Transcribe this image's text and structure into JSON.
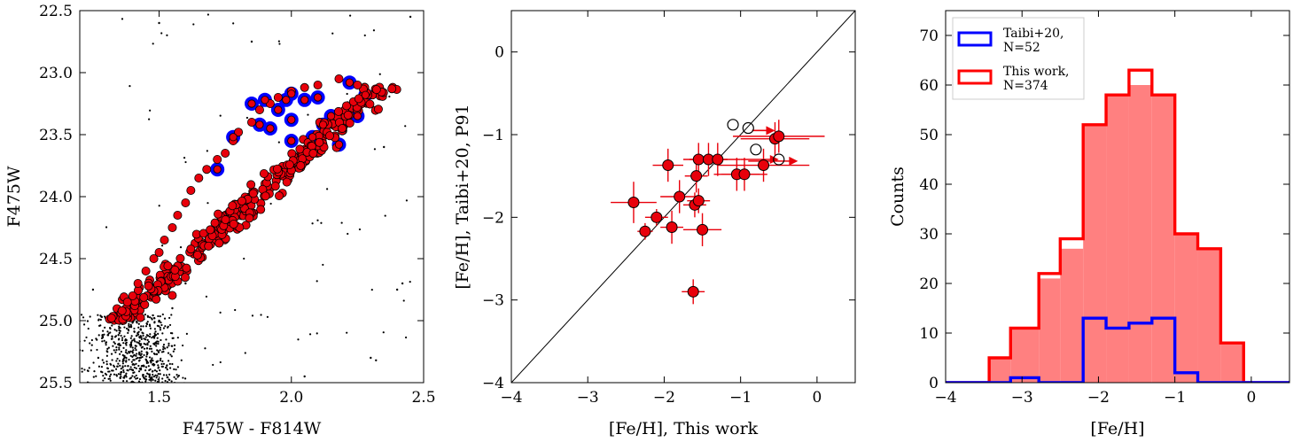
{
  "chart_data": [
    {
      "type": "scatter",
      "name": "cmd",
      "xlabel": "F475W - F814W",
      "ylabel": "F475W",
      "xlim": [
        1.2,
        2.5
      ],
      "ylim": [
        25.5,
        22.5
      ],
      "y_inverted": true,
      "xticks": [
        1.5,
        2.0,
        2.5
      ],
      "xtick_labels": [
        "1.5",
        "2.0",
        "2.5"
      ],
      "yticks": [
        22.5,
        23.0,
        23.5,
        24.0,
        24.5,
        25.0,
        25.5
      ],
      "ytick_labels": [
        "22.5",
        "23.0",
        "23.5",
        "24.0",
        "24.5",
        "25.0",
        "25.5"
      ],
      "colors": {
        "field": "#000000",
        "members": "#e8000b",
        "taibi": "#0000ff"
      },
      "series": [
        {
          "role": "field",
          "marker": "small black dots",
          "points_sample": [
            [
              1.27,
              25.3
            ],
            [
              1.35,
              25.1
            ],
            [
              1.4,
              25.4
            ],
            [
              1.43,
              25.2
            ],
            [
              1.45,
              25.45
            ],
            [
              1.5,
              25.0
            ],
            [
              1.55,
              24.9
            ],
            [
              1.6,
              24.7
            ],
            [
              1.25,
              24.75
            ],
            [
              2.05,
              25.45
            ],
            [
              2.3,
              25.3
            ],
            [
              2.4,
              24.75
            ],
            [
              2.45,
              22.55
            ],
            [
              1.5,
              22.6
            ],
            [
              1.85,
              22.75
            ],
            [
              2.35,
              23.6
            ],
            [
              2.42,
              24.7
            ],
            [
              2.32,
              25.32
            ]
          ]
        },
        {
          "role": "members",
          "marker": "red filled circles",
          "points_sample": [
            [
              1.32,
              24.98
            ],
            [
              1.38,
              24.85
            ],
            [
              1.42,
              24.7
            ],
            [
              1.45,
              24.6
            ],
            [
              1.48,
              24.5
            ],
            [
              1.5,
              24.45
            ],
            [
              1.52,
              24.35
            ],
            [
              1.55,
              24.25
            ],
            [
              1.57,
              24.15
            ],
            [
              1.6,
              24.05
            ],
            [
              1.62,
              23.95
            ],
            [
              1.65,
              23.85
            ],
            [
              1.68,
              23.78
            ],
            [
              1.72,
              23.7
            ],
            [
              1.75,
              23.65
            ],
            [
              1.78,
              23.55
            ],
            [
              1.8,
              23.48
            ],
            [
              1.85,
              23.4
            ],
            [
              1.88,
              23.3
            ],
            [
              1.92,
              23.25
            ],
            [
              1.95,
              23.2
            ],
            [
              2.0,
              23.15
            ],
            [
              2.05,
              23.12
            ],
            [
              2.1,
              23.1
            ],
            [
              2.18,
              23.05
            ],
            [
              2.25,
              23.1
            ],
            [
              2.38,
              23.13
            ],
            [
              1.4,
              24.8
            ],
            [
              1.36,
              24.92
            ],
            [
              1.46,
              24.72
            ]
          ]
        },
        {
          "role": "taibi",
          "marker": "blue ring",
          "points": [
            [
              1.78,
              23.52
            ],
            [
              1.85,
              23.25
            ],
            [
              1.9,
              23.22
            ],
            [
              1.92,
              23.45
            ],
            [
              1.95,
              23.3
            ],
            [
              1.98,
              23.22
            ],
            [
              2.0,
              23.17
            ],
            [
              2.0,
              23.38
            ],
            [
              2.0,
              23.55
            ],
            [
              2.05,
              23.22
            ],
            [
              2.1,
              23.2
            ],
            [
              2.12,
              23.42
            ],
            [
              2.15,
              23.35
            ],
            [
              2.18,
              23.58
            ],
            [
              2.22,
              23.08
            ],
            [
              2.25,
              23.35
            ],
            [
              2.28,
              23.18
            ],
            [
              1.88,
              23.42
            ],
            [
              1.72,
              23.78
            ],
            [
              2.08,
              23.52
            ]
          ]
        }
      ]
    },
    {
      "type": "scatter",
      "name": "comparison",
      "xlabel": "[Fe/H], This work",
      "ylabel": "[Fe/H], Taibi+20, P91",
      "xlim": [
        -4,
        0.5
      ],
      "ylim": [
        -4,
        0.5
      ],
      "xticks": [
        -4,
        -3,
        -2,
        -1,
        0
      ],
      "xtick_labels": [
        "−4",
        "−3",
        "−2",
        "−1",
        "0"
      ],
      "yticks": [
        -4,
        -3,
        -2,
        -1,
        0
      ],
      "ytick_labels": [
        "−4",
        "−3",
        "−2",
        "−1",
        "0"
      ],
      "one_to_one_line": true,
      "colors": {
        "points": "#e8000b",
        "open": "#000000"
      },
      "filled_points": [
        {
          "x": -2.4,
          "y": -1.82,
          "xerr": 0.3,
          "yerr": 0.25
        },
        {
          "x": -2.25,
          "y": -2.17,
          "xerr": 0.1,
          "yerr": 0.1
        },
        {
          "x": -2.1,
          "y": -2.0,
          "xerr": 0.15,
          "yerr": 0.1
        },
        {
          "x": -1.95,
          "y": -1.37,
          "xerr": 0.2,
          "yerr": 0.2
        },
        {
          "x": -1.9,
          "y": -2.12,
          "xerr": 0.15,
          "yerr": 0.2
        },
        {
          "x": -1.8,
          "y": -1.75,
          "xerr": 0.25,
          "yerr": 0.2
        },
        {
          "x": -1.62,
          "y": -2.9,
          "xerr": 0.15,
          "yerr": 0.15
        },
        {
          "x": -1.6,
          "y": -1.85,
          "xerr": 0.15,
          "yerr": 0.15
        },
        {
          "x": -1.58,
          "y": -1.5,
          "xerr": 0.15,
          "yerr": 0.2
        },
        {
          "x": -1.55,
          "y": -1.3,
          "xerr": 0.2,
          "yerr": 0.2
        },
        {
          "x": -1.55,
          "y": -1.8,
          "xerr": 0.15,
          "yerr": 0.15
        },
        {
          "x": -1.5,
          "y": -2.15,
          "xerr": 0.25,
          "yerr": 0.2
        },
        {
          "x": -1.42,
          "y": -1.3,
          "xerr": 0.25,
          "yerr": 0.2
        },
        {
          "x": -1.3,
          "y": -1.3,
          "xerr": 0.3,
          "yerr": 0.2
        },
        {
          "x": -1.05,
          "y": -1.48,
          "xerr": 0.3,
          "yerr": 0.2
        },
        {
          "x": -0.95,
          "y": -1.48,
          "xerr": 0.3,
          "yerr": 0.2
        },
        {
          "x": -0.7,
          "y": -1.37,
          "xerr": 0.6,
          "yerr": 0.2
        },
        {
          "x": -0.55,
          "y": -1.05,
          "xerr": 0.45,
          "yerr": 0.2
        },
        {
          "x": -0.5,
          "y": -1.02,
          "xerr": 0.6,
          "yerr": 0.2
        }
      ],
      "lower_limit_arrows": [
        {
          "x": -1.0,
          "y": -1.3,
          "to": -0.5
        },
        {
          "x": -0.9,
          "y": -1.32,
          "to": -0.25
        },
        {
          "x": -0.85,
          "y": -0.95,
          "to": -0.55
        }
      ],
      "open_points": [
        {
          "x": -1.1,
          "y": -0.88
        },
        {
          "x": -0.9,
          "y": -0.92
        },
        {
          "x": -0.8,
          "y": -1.18
        },
        {
          "x": -0.5,
          "y": -1.3
        }
      ]
    },
    {
      "type": "bar",
      "name": "histogram",
      "xlabel": "[Fe/H]",
      "ylabel": "Counts",
      "xlim": [
        -4,
        0.5
      ],
      "ylim": [
        0,
        75
      ],
      "xticks": [
        -4,
        -3,
        -2,
        -1,
        0
      ],
      "xtick_labels": [
        "−4",
        "−3",
        "−2",
        "−1",
        "0"
      ],
      "yticks": [
        0,
        10,
        20,
        30,
        40,
        50,
        60,
        70
      ],
      "ytick_labels": [
        "0",
        "10",
        "20",
        "30",
        "40",
        "50",
        "60",
        "70"
      ],
      "bin_edges": [
        -4.0,
        -3.43,
        -3.15,
        -2.78,
        -2.5,
        -2.2,
        -1.9,
        -1.6,
        -1.3,
        -1.0,
        -0.7,
        -0.4,
        -0.1,
        0.5
      ],
      "series": [
        {
          "name": "Taibi+20,\nN=52",
          "legend_lines": [
            "Taibi+20,",
            "N=52"
          ],
          "style": "step",
          "color": "#0000ff",
          "values": [
            0,
            0,
            1,
            0,
            0,
            13,
            11,
            12,
            13,
            2,
            0,
            0,
            0
          ]
        },
        {
          "name": "This work,\nN=374",
          "legend_lines": [
            "This work,",
            "N=374"
          ],
          "style": "step",
          "color": "#ff0000",
          "values": [
            0,
            5,
            11,
            22,
            29,
            52,
            58,
            63,
            58,
            30,
            27,
            8,
            0
          ]
        },
        {
          "role": "filled",
          "style": "filled",
          "color": "#ff8080",
          "values": [
            0,
            5,
            11,
            21,
            27,
            52,
            58,
            60,
            58,
            30,
            27,
            8,
            0
          ]
        }
      ],
      "legend": {
        "position": "top-left"
      }
    }
  ]
}
